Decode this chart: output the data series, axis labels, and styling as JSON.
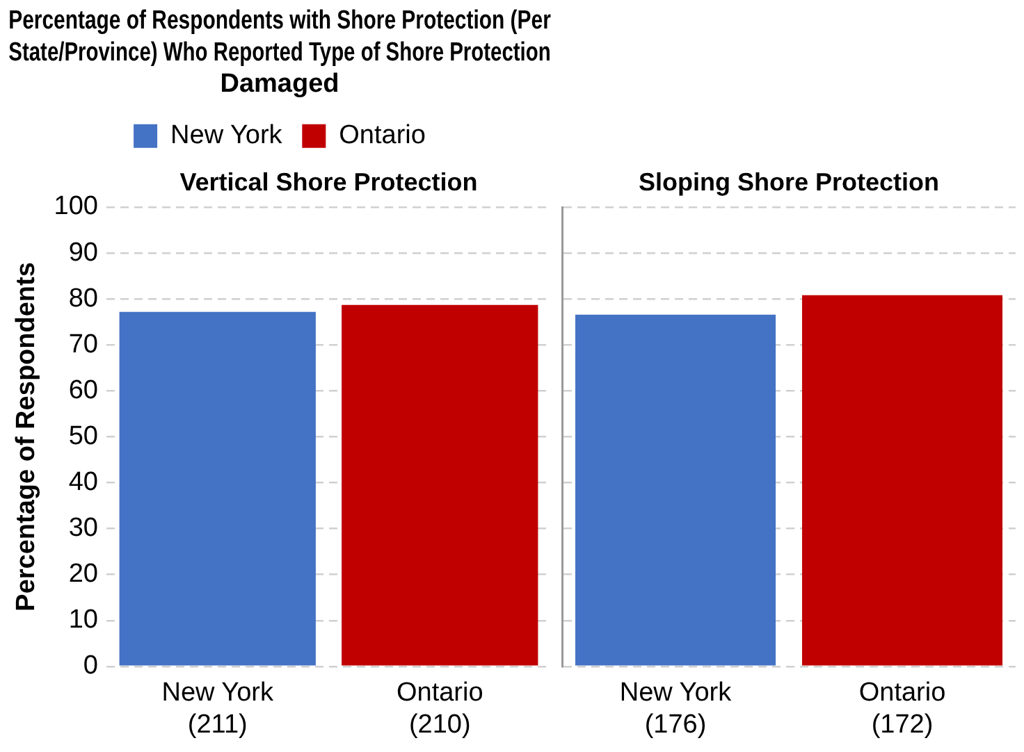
{
  "chart_data": [
    {
      "type": "bar",
      "title": "Percentage of Respondents with Shore Protection (Per State/Province) Who Reported Type of Shore Protection Damaged",
      "subtitle": "Vertical Shore Protection",
      "ylabel": "Percentage of Respondents",
      "categories": [
        "New York\n(211)",
        "Ontario\n(210)"
      ],
      "series": [
        {
          "name": "New York",
          "color": "#4472c4",
          "values": [
            77.2,
            null
          ]
        },
        {
          "name": "Ontario",
          "color": "#c00000",
          "values": [
            null,
            78.7
          ]
        }
      ],
      "ylim": [
        0,
        100
      ],
      "yticks": [
        0,
        10,
        20,
        30,
        40,
        50,
        60,
        70,
        80,
        90,
        100
      ],
      "grid": "y",
      "legend": "top"
    },
    {
      "type": "bar",
      "subtitle": "Sloping Shore Protection",
      "categories": [
        "New York\n(176)",
        "Ontario\n(172)"
      ],
      "series": [
        {
          "color": "#4472c4",
          "values": [
            76.6,
            null
          ]
        },
        {
          "color": "#c00000",
          "values": [
            null,
            80.8
          ]
        }
      ],
      "ylim": [
        0,
        100
      ],
      "yticks": [
        0,
        10,
        20,
        30,
        40,
        50,
        60,
        70,
        80,
        90,
        100
      ],
      "grid": "y",
      "tick_labels": "x"
    }
  ]
}
